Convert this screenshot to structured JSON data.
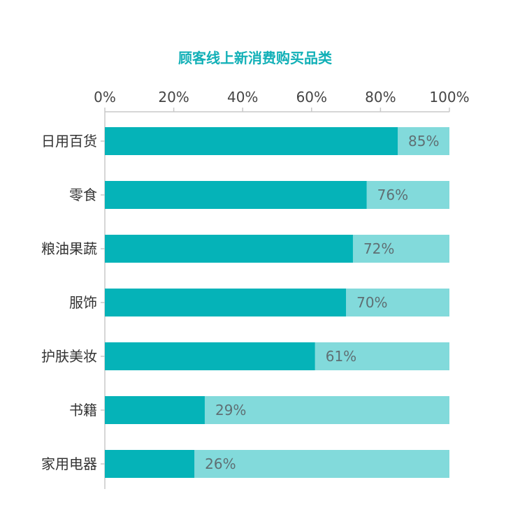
{
  "chart_data": {
    "type": "bar",
    "orientation": "horizontal",
    "stacked_to_100": true,
    "title": "顾客线上新消费购买品类",
    "categories": [
      "日用百货",
      "零食",
      "粮油果蔬",
      "服饰",
      "护肤美妆",
      "书籍",
      "家用电器"
    ],
    "values": [
      85,
      76,
      72,
      70,
      61,
      29,
      26
    ],
    "value_labels": [
      "85%",
      "76%",
      "72%",
      "70%",
      "61%",
      "29%",
      "26%"
    ],
    "xlim": [
      0,
      100
    ],
    "x_ticks": [
      0,
      20,
      40,
      60,
      80,
      100
    ],
    "x_tick_labels": [
      "0%",
      "20%",
      "40%",
      "60%",
      "80%",
      "100%"
    ],
    "x_axis_position": "top",
    "grid": false,
    "legend": "none"
  },
  "colors": {
    "title": "#12b0b7",
    "bar_value": "#05b3b8",
    "bar_remainder": "#82dadb",
    "axis": "#c8c8c8",
    "value_text": "#5f6f73"
  }
}
